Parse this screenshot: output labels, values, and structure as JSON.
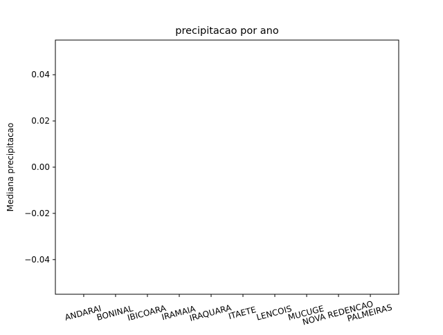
{
  "chart_data": {
    "type": "bar",
    "title": "precipitacao por ano",
    "xlabel": "",
    "ylabel": "Mediana precipitacao",
    "categories": [
      "ANDARAI",
      "BONINAL",
      "IBICOARA",
      "IRAMAIA",
      "IRAQUARA",
      "ITAETE",
      "LENCOIS",
      "MUCUGE",
      "NOVA REDENCAO",
      "PALMEIRAS"
    ],
    "values": [
      0,
      0,
      0,
      0,
      0,
      0,
      0,
      0,
      0,
      0
    ],
    "ylim": [
      -0.055,
      0.055
    ],
    "yticks": [
      -0.04,
      -0.02,
      0.0,
      0.02,
      0.04
    ],
    "ytick_labels": [
      "−0.04",
      "−0.02",
      "0.00",
      "0.02",
      "0.04"
    ],
    "xtick_rotation_deg": 15,
    "bar_color": "#1f77b4",
    "grid": false,
    "legend": false
  }
}
